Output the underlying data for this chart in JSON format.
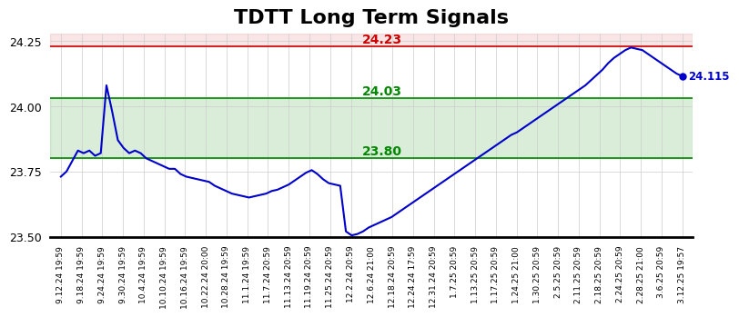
{
  "title": "TDTT Long Term Signals",
  "title_fontsize": 16,
  "title_fontweight": "bold",
  "line_color": "#0000cc",
  "line_width": 1.5,
  "background_color": "#ffffff",
  "grid_color": "#cccccc",
  "ylim": [
    23.5,
    24.28
  ],
  "yticks": [
    23.5,
    23.75,
    24.0,
    24.25
  ],
  "hline_red": 24.23,
  "hline_red_color": "#cc0000",
  "hline_red_label": "24.23",
  "hline_green1": 24.03,
  "hline_green1_color": "#008800",
  "hline_green1_label": "24.03",
  "hline_green2": 23.8,
  "hline_green2_color": "#008800",
  "hline_green2_label": "23.80",
  "last_value": 24.115,
  "last_value_label": "24.115",
  "red_band_alpha": 0.1,
  "green_band_alpha": 0.15,
  "x_labels": [
    "9.12.24 19:59",
    "9.18.24 19:59",
    "9.24.24 19:59",
    "9.30.24 19:59",
    "10.4.24 19:59",
    "10.10.24 19:59",
    "10.16.24 19:59",
    "10.22.24 20:00",
    "10.28.24 19:59",
    "11.1.24 19:59",
    "11.7.24 20:59",
    "11.13.24 20:59",
    "11.19.24 20:59",
    "11.25.24 20:59",
    "12.2.24 20:59",
    "12.6.24 21:00",
    "12.18.24 20:59",
    "12.24.24 17:59",
    "12.31.24 20:59",
    "1.7.25 20:59",
    "1.13.25 20:59",
    "1.17.25 20:59",
    "1.24.25 21:00",
    "1.30.25 20:59",
    "2.5.25 20:59",
    "2.11.25 20:59",
    "2.18.25 20:59",
    "2.24.25 20:59",
    "2.28.25 21:00",
    "3.6.25 20:59",
    "3.12.25 19:57"
  ],
  "y_values_detailed": [
    23.73,
    23.75,
    23.79,
    23.83,
    23.82,
    23.83,
    23.81,
    23.82,
    24.08,
    23.98,
    23.87,
    23.84,
    23.82,
    23.83,
    23.82,
    23.8,
    23.79,
    23.78,
    23.77,
    23.76,
    23.76,
    23.74,
    23.73,
    23.725,
    23.72,
    23.715,
    23.71,
    23.695,
    23.685,
    23.675,
    23.665,
    23.66,
    23.655,
    23.65,
    23.655,
    23.66,
    23.665,
    23.675,
    23.68,
    23.69,
    23.7,
    23.715,
    23.73,
    23.745,
    23.755,
    23.74,
    23.72,
    23.705,
    23.7,
    23.695,
    23.52,
    23.505,
    23.51,
    23.52,
    23.535,
    23.545,
    23.555,
    23.565,
    23.575,
    23.59,
    23.605,
    23.62,
    23.635,
    23.65,
    23.665,
    23.68,
    23.695,
    23.71,
    23.725,
    23.74,
    23.755,
    23.77,
    23.785,
    23.8,
    23.815,
    23.83,
    23.845,
    23.86,
    23.875,
    23.89,
    23.9,
    23.915,
    23.93,
    23.945,
    23.96,
    23.975,
    23.99,
    24.005,
    24.02,
    24.035,
    24.05,
    24.065,
    24.08,
    24.1,
    24.12,
    24.14,
    24.165,
    24.185,
    24.2,
    24.215,
    24.225,
    24.22,
    24.215,
    24.2,
    24.185,
    24.17,
    24.155,
    24.14,
    24.125,
    24.115
  ]
}
